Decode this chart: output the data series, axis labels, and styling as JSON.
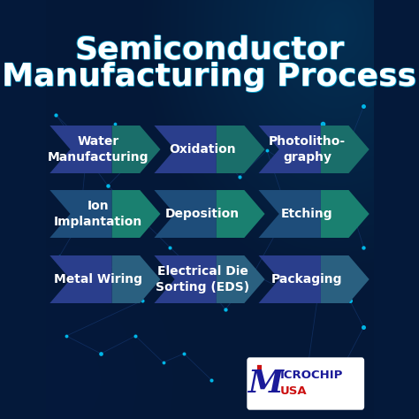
{
  "title_line1": "Semiconductor",
  "title_line2": "Manufacturing Process",
  "background_dark": "#04193a",
  "background_mid": "#062855",
  "teal_glow": "#0a4a5a",
  "title_color": "#ffffff",
  "chevron_blue_left": "#2a3e8c",
  "chevron_teal_right": "#1a6e6a",
  "chevron_row2_left": "#1e4d7a",
  "chevron_row2_right": "#1a8070",
  "rows": [
    {
      "items": [
        "Water\nManufacturing",
        "Oxidation",
        "Photolitho-\ngraphy"
      ],
      "color_left": "#2a3e8c",
      "color_right": "#1a6e6a"
    },
    {
      "items": [
        "Ion\nImplantation",
        "Deposition",
        "Etching"
      ],
      "color_left": "#1e4d7a",
      "color_right": "#1a8070"
    },
    {
      "items": [
        "Metal Wiring",
        "Electrical Die\nSorting (EDS)",
        "Packaging"
      ],
      "color_left": "#2a3e8c",
      "color_right": "#2a6080"
    }
  ],
  "text_color": "#ffffff",
  "font_size_title": 26,
  "font_size_arrow": 10,
  "network_dot_color": "#00ccff",
  "network_line_color": "#1a4080",
  "logo_text_main": "MICROCHIP",
  "logo_text_sub": "USA"
}
